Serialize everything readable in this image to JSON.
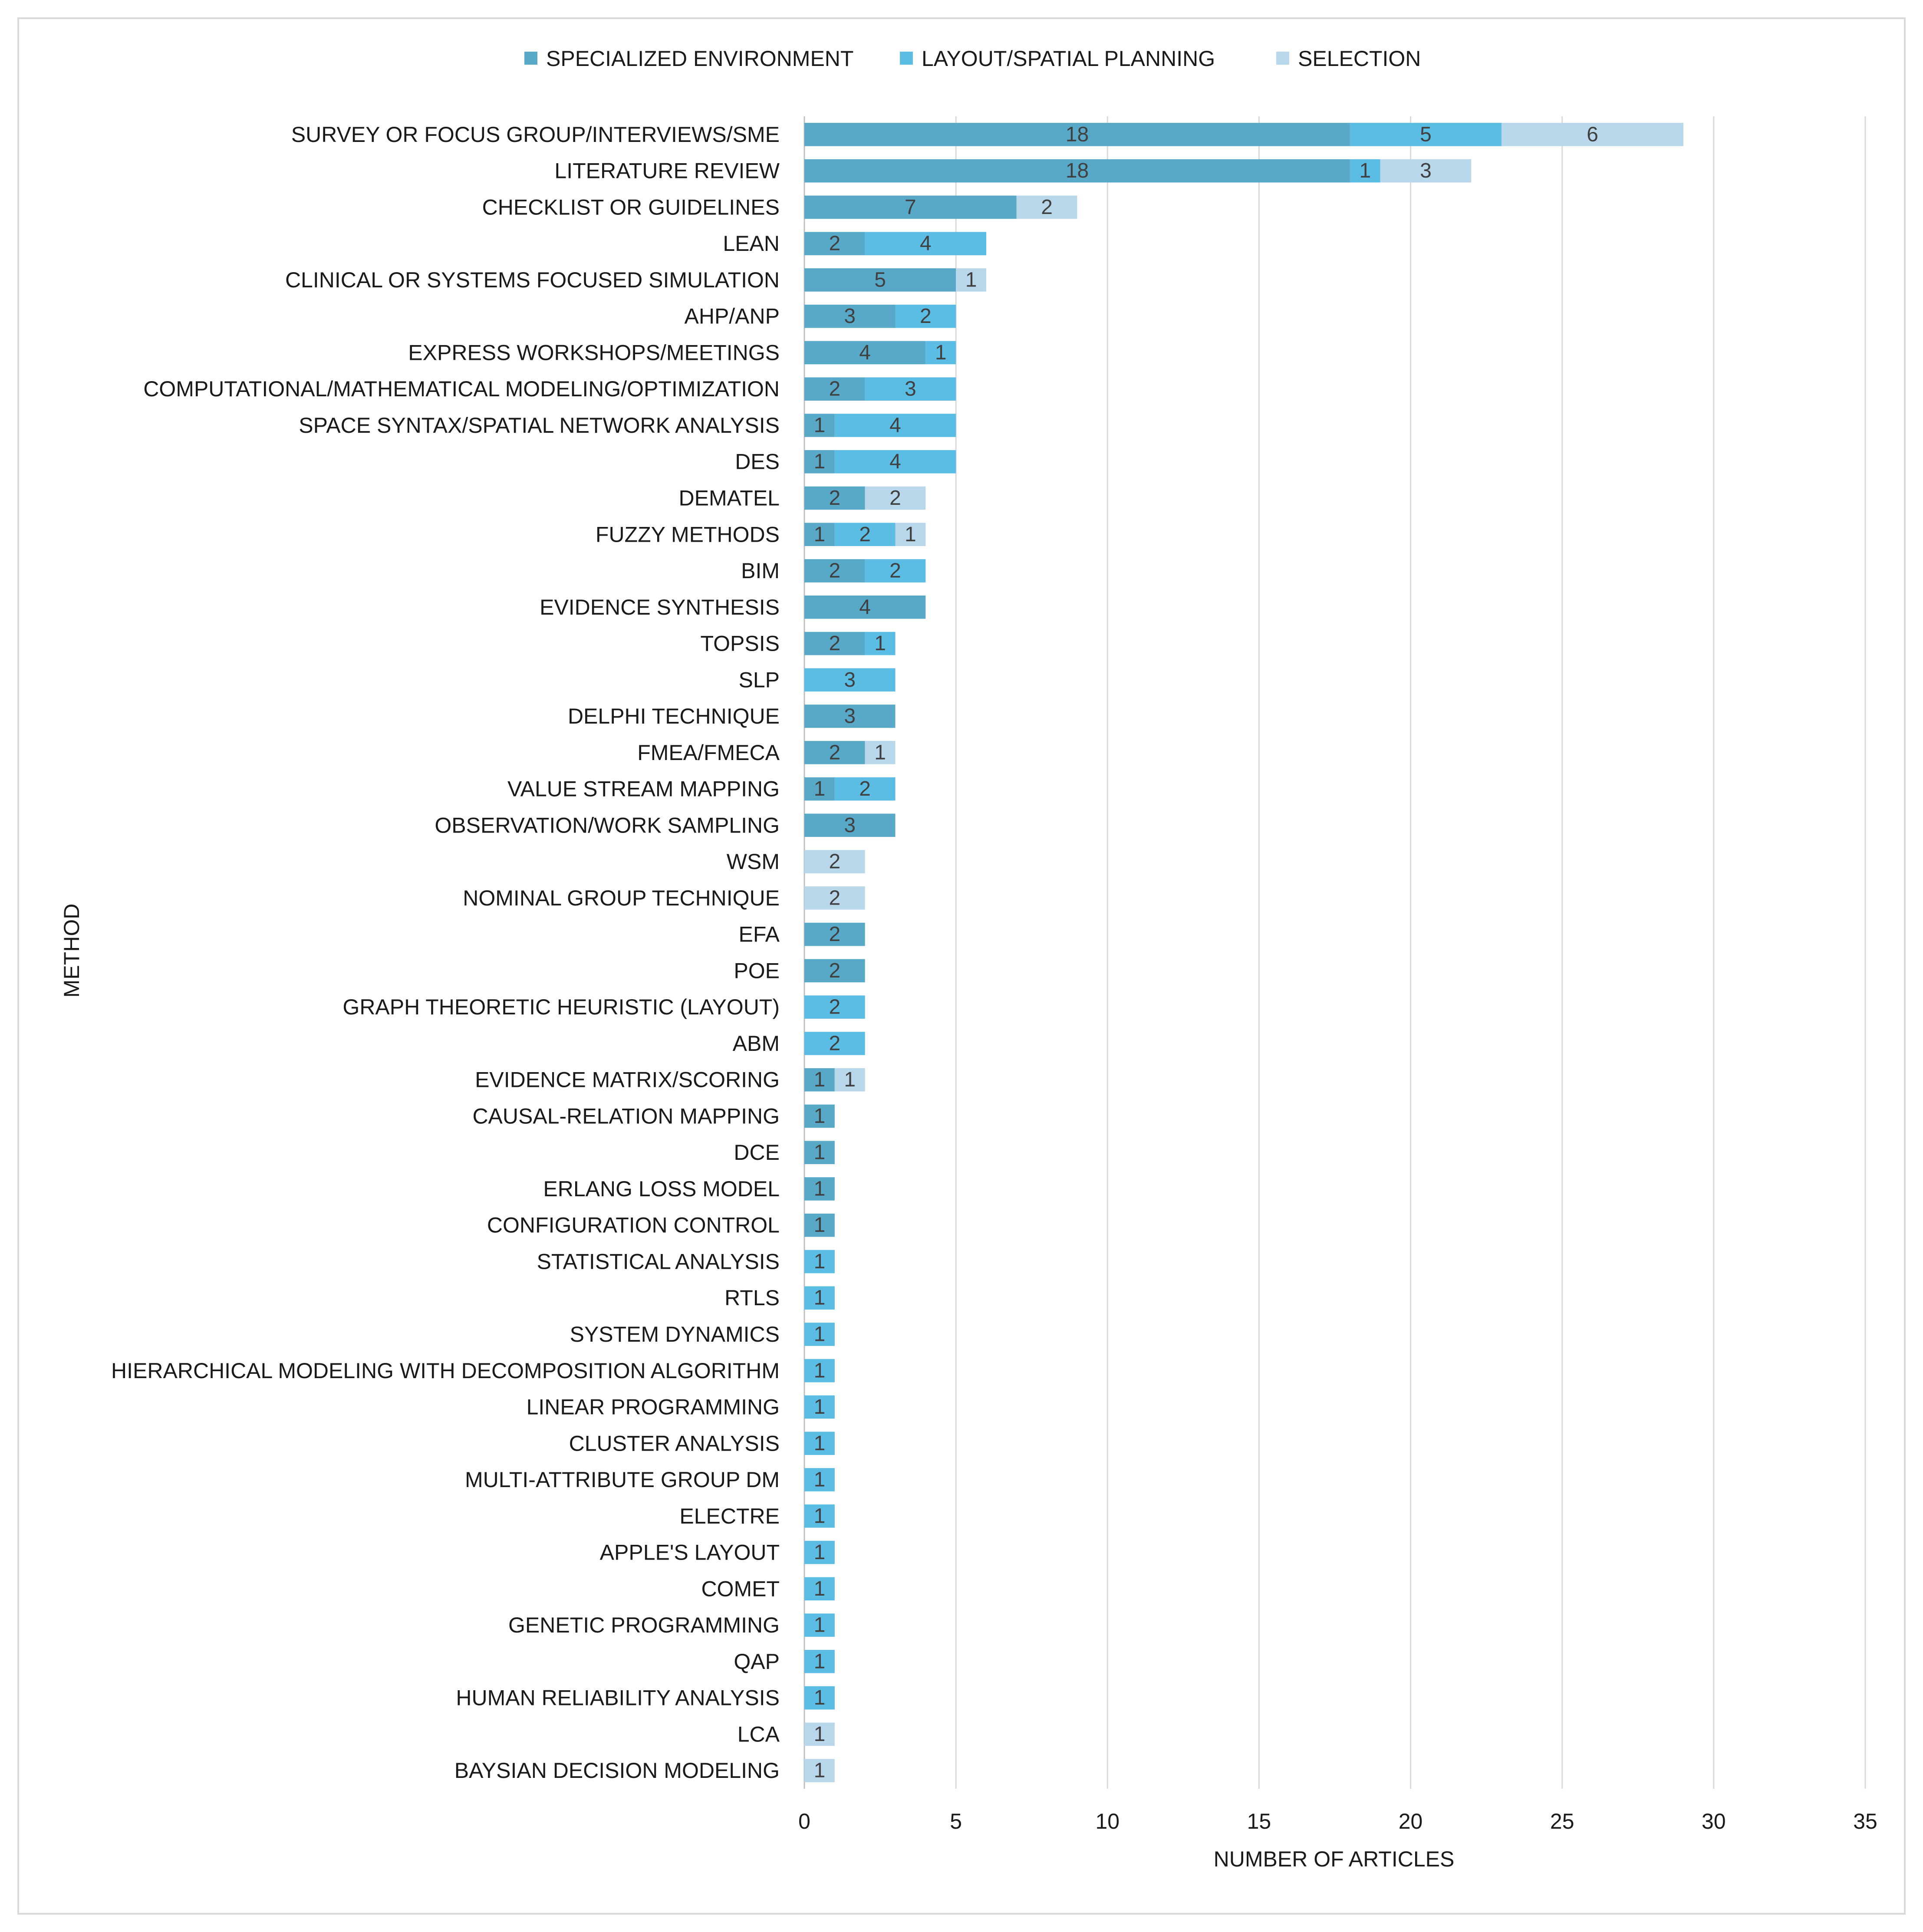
{
  "chart_data": {
    "type": "bar",
    "orientation": "horizontal",
    "stacked": true,
    "xlabel": "NUMBER OF ARTICLES",
    "ylabel": "METHOD",
    "xlim": [
      0,
      35
    ],
    "xticks": [
      0,
      5,
      10,
      15,
      20,
      25,
      30,
      35
    ],
    "grid": "vertical",
    "legend_position": "top",
    "categories": [
      "SURVEY OR FOCUS GROUP/INTERVIEWS/SME",
      "LITERATURE REVIEW",
      "CHECKLIST OR GUIDELINES",
      "LEAN",
      "CLINICAL OR SYSTEMS FOCUSED SIMULATION",
      "AHP/ANP",
      "EXPRESS WORKSHOPS/MEETINGS",
      "COMPUTATIONAL/MATHEMATICAL MODELING/OPTIMIZATION",
      "SPACE SYNTAX/SPATIAL NETWORK ANALYSIS",
      "DES",
      "DEMATEL",
      "FUZZY METHODS",
      "BIM",
      "EVIDENCE SYNTHESIS",
      "TOPSIS",
      "SLP",
      "DELPHI TECHNIQUE",
      "FMEA/FMECA",
      "VALUE STREAM MAPPING",
      "OBSERVATION/WORK SAMPLING",
      "WSM",
      "NOMINAL GROUP TECHNIQUE",
      "EFA",
      "POE",
      "GRAPH THEORETIC HEURISTIC (LAYOUT)",
      "ABM",
      "EVIDENCE MATRIX/SCORING",
      "CAUSAL-RELATION MAPPING",
      "DCE",
      "ERLANG LOSS MODEL",
      "CONFIGURATION CONTROL",
      "STATISTICAL ANALYSIS",
      "RTLS",
      "SYSTEM DYNAMICS",
      "HIERARCHICAL MODELING WITH DECOMPOSITION ALGORITHM",
      "LINEAR PROGRAMMING",
      "CLUSTER ANALYSIS",
      "MULTI-ATTRIBUTE GROUP DM",
      "ELECTRE",
      "APPLE'S LAYOUT",
      "COMET",
      "GENETIC PROGRAMMING",
      "QAP",
      "HUMAN RELIABILITY ANALYSIS",
      "LCA",
      "BAYSIAN DECISION MODELING"
    ],
    "series": [
      {
        "name": "SPECIALIZED ENVIRONMENT",
        "color": "#58a9c8",
        "values": [
          18,
          18,
          7,
          2,
          5,
          3,
          4,
          2,
          1,
          1,
          2,
          1,
          2,
          4,
          2,
          0,
          3,
          2,
          1,
          3,
          0,
          0,
          2,
          2,
          0,
          0,
          1,
          1,
          1,
          1,
          1,
          0,
          0,
          0,
          0,
          0,
          0,
          0,
          0,
          0,
          0,
          0,
          0,
          0,
          0,
          0
        ]
      },
      {
        "name": "LAYOUT/SPATIAL PLANNING",
        "color": "#5bbde3",
        "values": [
          5,
          1,
          0,
          4,
          0,
          2,
          1,
          3,
          4,
          4,
          0,
          2,
          2,
          0,
          1,
          3,
          0,
          0,
          2,
          0,
          0,
          0,
          0,
          0,
          2,
          2,
          0,
          0,
          0,
          0,
          0,
          1,
          1,
          1,
          1,
          1,
          1,
          1,
          1,
          1,
          1,
          1,
          1,
          1,
          0,
          0
        ]
      },
      {
        "name": "SELECTION",
        "color": "#b9d7eb",
        "values": [
          6,
          3,
          2,
          0,
          1,
          0,
          0,
          0,
          0,
          0,
          2,
          1,
          0,
          0,
          0,
          0,
          0,
          1,
          0,
          0,
          2,
          2,
          0,
          0,
          0,
          0,
          1,
          0,
          0,
          0,
          0,
          0,
          0,
          0,
          0,
          0,
          0,
          0,
          0,
          0,
          0,
          0,
          0,
          0,
          1,
          1
        ]
      }
    ]
  }
}
